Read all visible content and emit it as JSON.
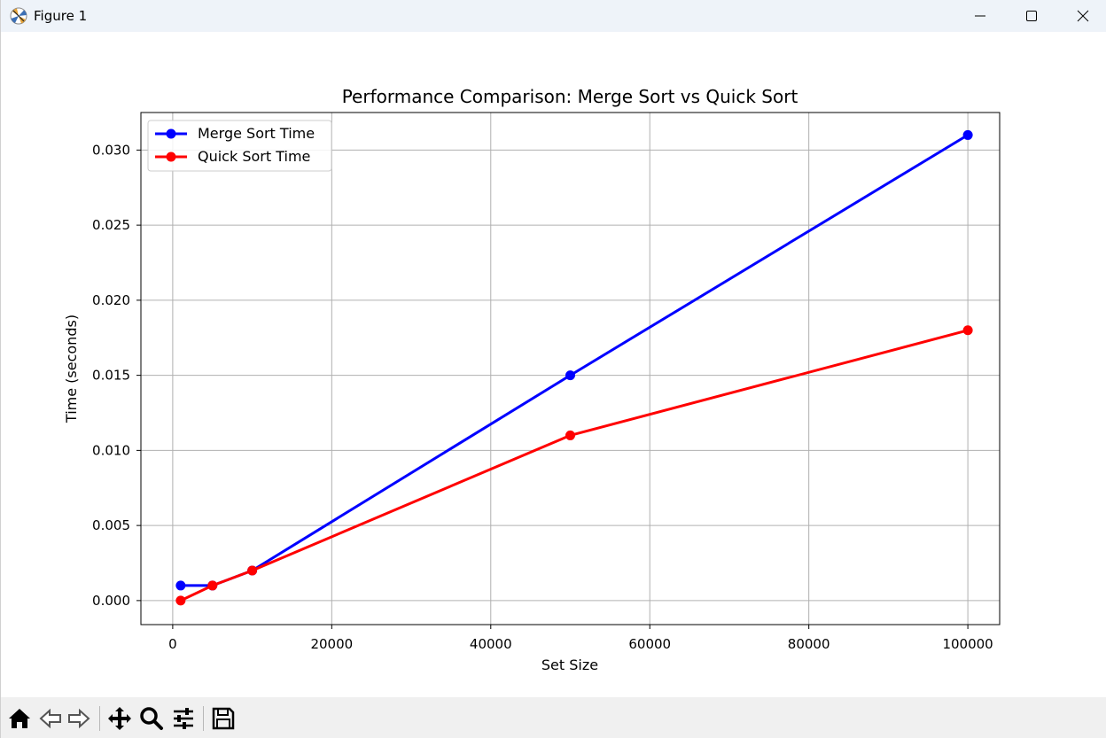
{
  "window": {
    "title": "Figure 1"
  },
  "toolbar": {
    "buttons": [
      {
        "name": "home-icon"
      },
      {
        "name": "back-arrow-icon"
      },
      {
        "name": "forward-arrow-icon"
      },
      {
        "name": "pan-icon"
      },
      {
        "name": "zoom-icon"
      },
      {
        "name": "configure-subplots-icon"
      },
      {
        "name": "save-icon"
      }
    ]
  },
  "chart_data": {
    "type": "line",
    "title": "Performance Comparison: Merge Sort vs Quick Sort",
    "xlabel": "Set Size",
    "ylabel": "Time (seconds)",
    "xlim": [
      -4000,
      104000
    ],
    "ylim": [
      -0.0016,
      0.0325
    ],
    "xticks": [
      0,
      20000,
      40000,
      60000,
      80000,
      100000
    ],
    "xtick_labels": [
      "0",
      "20000",
      "40000",
      "60000",
      "80000",
      "100000"
    ],
    "yticks": [
      0.0,
      0.005,
      0.01,
      0.015,
      0.02,
      0.025,
      0.03
    ],
    "ytick_labels": [
      "0.000",
      "0.005",
      "0.010",
      "0.015",
      "0.020",
      "0.025",
      "0.030"
    ],
    "grid": true,
    "legend_position": "upper-left",
    "series": [
      {
        "name": "Merge Sort Time",
        "color": "#0000ff",
        "x": [
          1000,
          5000,
          10000,
          50000,
          100000
        ],
        "y": [
          0.001,
          0.001,
          0.002,
          0.015,
          0.031
        ]
      },
      {
        "name": "Quick Sort Time",
        "color": "#ff0000",
        "x": [
          1000,
          5000,
          10000,
          50000,
          100000
        ],
        "y": [
          0.0,
          0.001,
          0.002,
          0.011,
          0.018
        ]
      }
    ]
  }
}
